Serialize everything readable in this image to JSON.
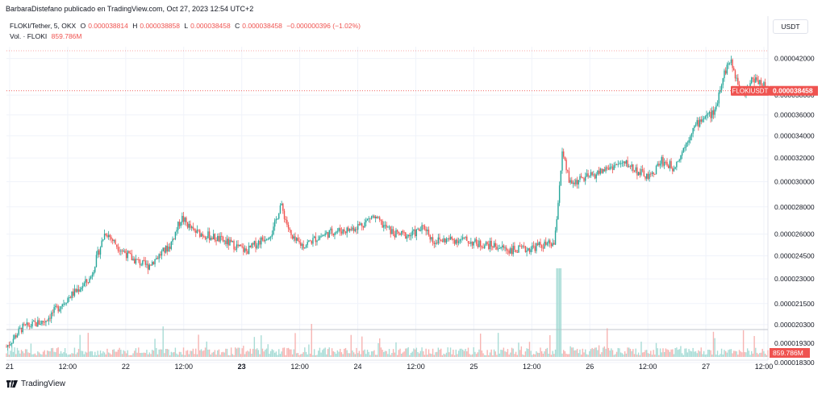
{
  "header": {
    "published_by": "BarbaraDistefano publicado en TradingView.com, Oct 27, 2023 12:54 UTC+2"
  },
  "legend": {
    "symbol": "FLOKI/Tether, 5, OKX",
    "o_label": "O",
    "o_value": "0.000038814",
    "h_label": "H",
    "h_value": "0.000038858",
    "l_label": "L",
    "l_value": "0.000038458",
    "c_label": "C",
    "c_value": "0.000038458",
    "change": "−0.000000396 (−1.02%)",
    "vol_label": "Vol. · FLOKI",
    "vol_value": "859.786M"
  },
  "currency_button": "USDT",
  "footer": {
    "brand": "TradingView"
  },
  "colors": {
    "up": "#26a69a",
    "down": "#ef5350",
    "grid": "#f0f3fa",
    "axis_text": "#131722",
    "vol_up": "#a8dcd6",
    "vol_down": "#f7b4b2"
  },
  "chart_data": {
    "type": "candlestick",
    "title": "",
    "y_axis": {
      "labels": [
        "0.000042000",
        "0.000038000",
        "0.000036000",
        "0.000034000",
        "0.000032000",
        "0.000030000",
        "0.000028000",
        "0.000026000",
        "0.000024500",
        "0.000023000",
        "0.000021500",
        "0.000020300",
        "0.000019300",
        "0.000018300"
      ],
      "values": [
        4.2e-05,
        3.8e-05,
        3.6e-05,
        3.4e-05,
        3.2e-05,
        3e-05,
        2.8e-05,
        2.6e-05,
        2.45e-05,
        2.3e-05,
        2.15e-05,
        2.03e-05,
        1.93e-05,
        1.83e-05
      ],
      "scale": "log",
      "range": [
        1.85e-05,
        4.3e-05
      ]
    },
    "x_axis": {
      "ticks": [
        "21",
        "12:00",
        "22",
        "12:00",
        "23",
        "12:00",
        "24",
        "12:00",
        "25",
        "12:00",
        "26",
        "12:00",
        "27",
        "12:00"
      ],
      "bold": [
        false,
        false,
        false,
        false,
        true,
        false,
        false,
        false,
        false,
        false,
        false,
        false,
        false,
        false
      ]
    },
    "last_price_label": {
      "symbol": "FLOKIUSDT",
      "value": "0.000038458"
    },
    "volume_label": "859.786M",
    "price_path": [
      [
        0,
        1.91e-05
      ],
      [
        0.02,
        2.01e-05
      ],
      [
        0.05,
        2.05e-05
      ],
      [
        0.08,
        2.18e-05
      ],
      [
        0.11,
        2.3e-05
      ],
      [
        0.13,
        2.62e-05
      ],
      [
        0.145,
        2.52e-05
      ],
      [
        0.165,
        2.43e-05
      ],
      [
        0.185,
        2.38e-05
      ],
      [
        0.2,
        2.45e-05
      ],
      [
        0.215,
        2.52e-05
      ],
      [
        0.23,
        2.72e-05
      ],
      [
        0.245,
        2.62e-05
      ],
      [
        0.27,
        2.58e-05
      ],
      [
        0.285,
        2.55e-05
      ],
      [
        0.3,
        2.52e-05
      ],
      [
        0.315,
        2.48e-05
      ],
      [
        0.335,
        2.56e-05
      ],
      [
        0.35,
        2.62e-05
      ],
      [
        0.36,
        2.82e-05
      ],
      [
        0.375,
        2.56e-05
      ],
      [
        0.39,
        2.52e-05
      ],
      [
        0.41,
        2.58e-05
      ],
      [
        0.43,
        2.62e-05
      ],
      [
        0.45,
        2.63e-05
      ],
      [
        0.47,
        2.68e-05
      ],
      [
        0.48,
        2.73e-05
      ],
      [
        0.495,
        2.66e-05
      ],
      [
        0.51,
        2.6e-05
      ],
      [
        0.53,
        2.59e-05
      ],
      [
        0.55,
        2.65e-05
      ],
      [
        0.56,
        2.55e-05
      ],
      [
        0.58,
        2.56e-05
      ],
      [
        0.6,
        2.56e-05
      ],
      [
        0.62,
        2.53e-05
      ],
      [
        0.64,
        2.52e-05
      ],
      [
        0.66,
        2.49e-05
      ],
      [
        0.68,
        2.49e-05
      ],
      [
        0.7,
        2.52e-05
      ],
      [
        0.72,
        2.53e-05
      ],
      [
        0.73,
        3.24e-05
      ],
      [
        0.74,
        2.98e-05
      ],
      [
        0.755,
        3.02e-05
      ],
      [
        0.77,
        3.05e-05
      ],
      [
        0.785,
        3.1e-05
      ],
      [
        0.8,
        3.14e-05
      ],
      [
        0.815,
        3.15e-05
      ],
      [
        0.83,
        3.08e-05
      ],
      [
        0.845,
        3.03e-05
      ],
      [
        0.86,
        3.18e-05
      ],
      [
        0.875,
        3.12e-05
      ],
      [
        0.885,
        3.22e-05
      ],
      [
        0.9,
        3.45e-05
      ],
      [
        0.915,
        3.58e-05
      ],
      [
        0.93,
        3.62e-05
      ],
      [
        0.94,
        3.98e-05
      ],
      [
        0.95,
        4.18e-05
      ],
      [
        0.96,
        3.95e-05
      ],
      [
        0.97,
        3.82e-05
      ],
      [
        0.98,
        3.98e-05
      ],
      [
        0.99,
        3.95e-05
      ],
      [
        1.0,
        3.85e-05
      ]
    ],
    "volume_note": "volume bars shown at bottom pane"
  }
}
